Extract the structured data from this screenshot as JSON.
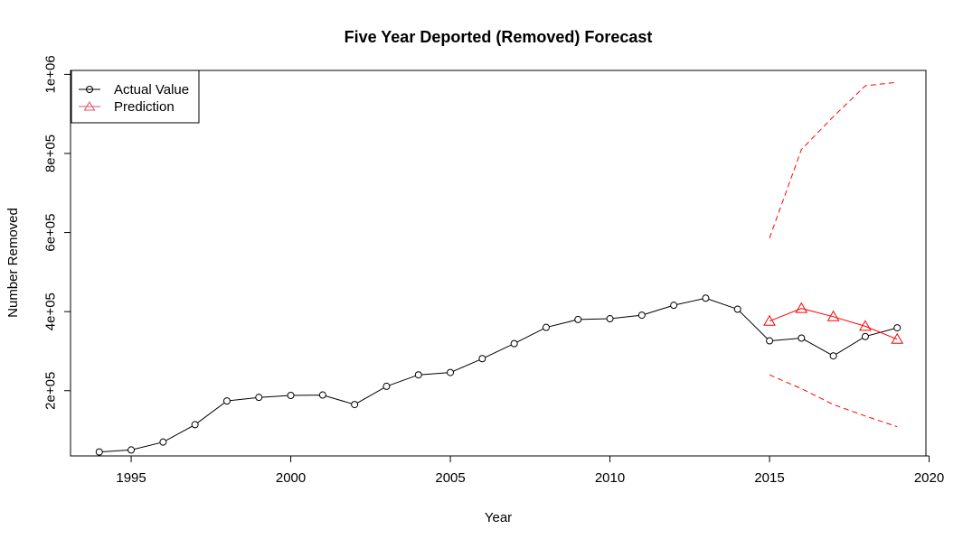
{
  "chart_data": {
    "type": "line",
    "title": "Five Year Deported (Removed) Forecast",
    "xlabel": "Year",
    "ylabel": "Number Removed",
    "xlim": [
      1993.1,
      2019.9
    ],
    "ylim": [
      35000,
      1010000
    ],
    "x_ticks": [
      1995,
      2000,
      2005,
      2010,
      2015,
      2020
    ],
    "y_ticks": [
      200000,
      400000,
      600000,
      800000,
      1000000
    ],
    "x_tick_labels": [
      "1995",
      "2000",
      "2005",
      "2010",
      "2015",
      "2020"
    ],
    "y_tick_labels": [
      "2e+05",
      "4e+05",
      "6e+05",
      "8e+05",
      "1e+06"
    ],
    "grid": false,
    "legend_position": "top-left",
    "series": [
      {
        "name": "Actual Value",
        "color": "#000000",
        "marker": "circle",
        "line": "solid",
        "x": [
          1994,
          1995,
          1996,
          1997,
          1998,
          1999,
          2000,
          2001,
          2002,
          2003,
          2004,
          2005,
          2006,
          2007,
          2008,
          2009,
          2010,
          2011,
          2012,
          2013,
          2014,
          2015,
          2016,
          2017,
          2018,
          2019
        ],
        "values": [
          45000,
          50000,
          70000,
          114000,
          174000,
          183000,
          188000,
          189000,
          165000,
          211000,
          240000,
          246000,
          281000,
          319000,
          360000,
          380000,
          382000,
          391000,
          416000,
          434000,
          406000,
          326000,
          333000,
          288000,
          337000,
          359000
        ]
      },
      {
        "name": "Prediction",
        "color": "#ff0000",
        "marker": "triangle",
        "line": "solid",
        "x": [
          2015,
          2016,
          2017,
          2018,
          2019
        ],
        "values": [
          376000,
          408000,
          387000,
          363000,
          330000
        ]
      },
      {
        "color": "#ff0000",
        "line": "dashed",
        "x": [
          2015,
          2016,
          2017,
          2018,
          2019
        ],
        "values": [
          586000,
          810000,
          893000,
          971000,
          980000
        ]
      },
      {
        "color": "#ff0000",
        "line": "dashed",
        "x": [
          2015,
          2016,
          2017,
          2018,
          2019
        ],
        "values": [
          240000,
          205000,
          165000,
          136000,
          109000
        ]
      }
    ]
  }
}
